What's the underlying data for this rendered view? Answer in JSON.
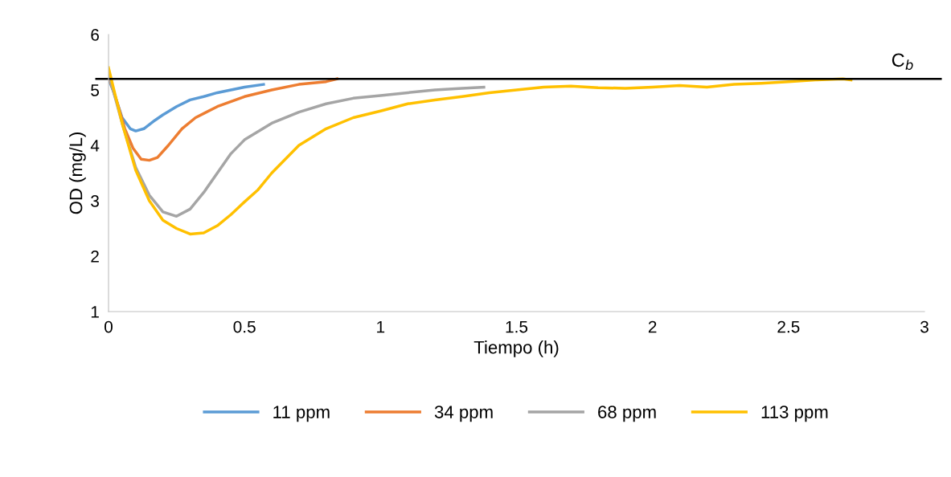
{
  "chart_data": {
    "type": "line",
    "xlabel": "Tiempo (h)",
    "ylabel": "OD (mg/L)",
    "xlim": [
      0,
      3
    ],
    "xticks": [
      0,
      0.5,
      1,
      1.5,
      2,
      2.5,
      3
    ],
    "ylim": [
      1,
      6
    ],
    "yticks": [
      1,
      2,
      3,
      4,
      5,
      6
    ],
    "grid": false,
    "legend": "bottom",
    "marker": "none",
    "line_style": "solid",
    "ref_lines": [
      {
        "axis": "y",
        "value": 5.2,
        "label": "C$_{b}$",
        "color": "#000000"
      }
    ],
    "series": [
      {
        "name": "11 ppm",
        "color": "#5b9bd5",
        "x": [
          0,
          0.02,
          0.05,
          0.08,
          0.1,
          0.13,
          0.17,
          0.2,
          0.25,
          0.3,
          0.35,
          0.4,
          0.45,
          0.5,
          0.57
        ],
        "values": [
          5.2,
          4.95,
          4.5,
          4.3,
          4.26,
          4.3,
          4.45,
          4.55,
          4.7,
          4.82,
          4.88,
          4.95,
          5.0,
          5.05,
          5.1
        ]
      },
      {
        "name": "34 ppm",
        "color": "#ed7d31",
        "x": [
          0,
          0.03,
          0.06,
          0.09,
          0.12,
          0.15,
          0.18,
          0.22,
          0.27,
          0.32,
          0.4,
          0.5,
          0.6,
          0.7,
          0.8,
          0.84
        ],
        "values": [
          5.25,
          4.8,
          4.3,
          3.95,
          3.75,
          3.73,
          3.78,
          4.0,
          4.3,
          4.5,
          4.7,
          4.88,
          5.0,
          5.1,
          5.15,
          5.2
        ]
      },
      {
        "name": "68 ppm",
        "color": "#a5a5a5",
        "x": [
          0,
          0.05,
          0.1,
          0.15,
          0.2,
          0.25,
          0.3,
          0.35,
          0.4,
          0.45,
          0.5,
          0.6,
          0.7,
          0.8,
          0.9,
          1.0,
          1.1,
          1.2,
          1.3,
          1.38
        ],
        "values": [
          5.3,
          4.4,
          3.6,
          3.1,
          2.8,
          2.72,
          2.85,
          3.15,
          3.5,
          3.85,
          4.1,
          4.4,
          4.6,
          4.75,
          4.85,
          4.9,
          4.95,
          5.0,
          5.03,
          5.05
        ]
      },
      {
        "name": "113 ppm",
        "color": "#ffc000",
        "x": [
          0,
          0.05,
          0.1,
          0.15,
          0.2,
          0.25,
          0.3,
          0.35,
          0.4,
          0.45,
          0.5,
          0.55,
          0.6,
          0.65,
          0.7,
          0.8,
          0.9,
          1.0,
          1.1,
          1.2,
          1.3,
          1.4,
          1.5,
          1.6,
          1.7,
          1.8,
          1.9,
          2.0,
          2.1,
          2.2,
          2.3,
          2.4,
          2.5,
          2.6,
          2.7,
          2.73
        ],
        "values": [
          5.4,
          4.4,
          3.55,
          3.0,
          2.65,
          2.5,
          2.4,
          2.42,
          2.55,
          2.75,
          2.98,
          3.2,
          3.5,
          3.75,
          4.0,
          4.3,
          4.5,
          4.62,
          4.75,
          4.82,
          4.88,
          4.95,
          5.0,
          5.05,
          5.07,
          5.04,
          5.03,
          5.05,
          5.08,
          5.05,
          5.1,
          5.12,
          5.15,
          5.18,
          5.2,
          5.18
        ]
      }
    ]
  }
}
